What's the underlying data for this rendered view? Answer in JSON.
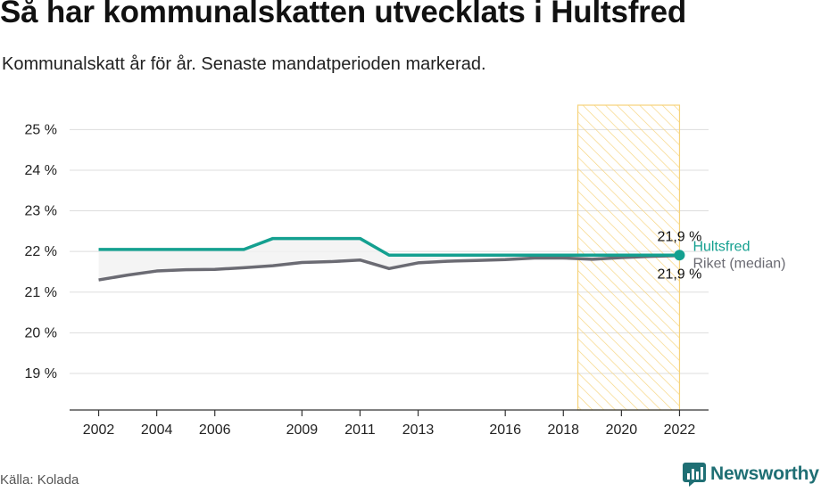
{
  "title": "Så har kommunalskatten utvecklats i Hultsfred",
  "subtitle": "Kommunalskatt år för år. Senaste mandatperioden markerad.",
  "source": "Källa: Kolada",
  "brand": "Newsworthy",
  "colors": {
    "hultsfred": "#14a090",
    "riket": "#6b6b73",
    "highlight": "#f6d37a",
    "grid": "#dddddd"
  },
  "chart_data": {
    "type": "line",
    "x": [
      2002,
      2003,
      2004,
      2005,
      2006,
      2007,
      2008,
      2009,
      2010,
      2011,
      2012,
      2013,
      2014,
      2015,
      2016,
      2017,
      2018,
      2019,
      2020,
      2021,
      2022
    ],
    "series": [
      {
        "name": "Hultsfred",
        "values": [
          22.05,
          22.05,
          22.05,
          22.05,
          22.05,
          22.05,
          22.32,
          22.32,
          22.32,
          22.32,
          21.91,
          21.91,
          21.91,
          21.91,
          21.91,
          21.91,
          21.91,
          21.91,
          21.91,
          21.91,
          21.91
        ],
        "end_label": "21,9 %"
      },
      {
        "name": "Riket (median)",
        "values": [
          21.3,
          21.42,
          21.52,
          21.55,
          21.56,
          21.6,
          21.65,
          21.73,
          21.75,
          21.79,
          21.58,
          21.72,
          21.76,
          21.78,
          21.8,
          21.84,
          21.84,
          21.81,
          21.85,
          21.88,
          21.9
        ],
        "end_label": "21,9 %"
      }
    ],
    "ylim": [
      18.1,
      25.6
    ],
    "xlim": [
      2001,
      2023
    ],
    "y_ticks": [
      19,
      20,
      21,
      22,
      23,
      24,
      25
    ],
    "y_tick_labels": [
      "19 %",
      "20 %",
      "21 %",
      "22 %",
      "23 %",
      "24 %",
      "25 %"
    ],
    "x_ticks": [
      2002,
      2004,
      2006,
      2009,
      2011,
      2013,
      2016,
      2018,
      2020,
      2022
    ],
    "highlight_period": [
      2018.5,
      2022
    ],
    "grid": "horizontal"
  }
}
